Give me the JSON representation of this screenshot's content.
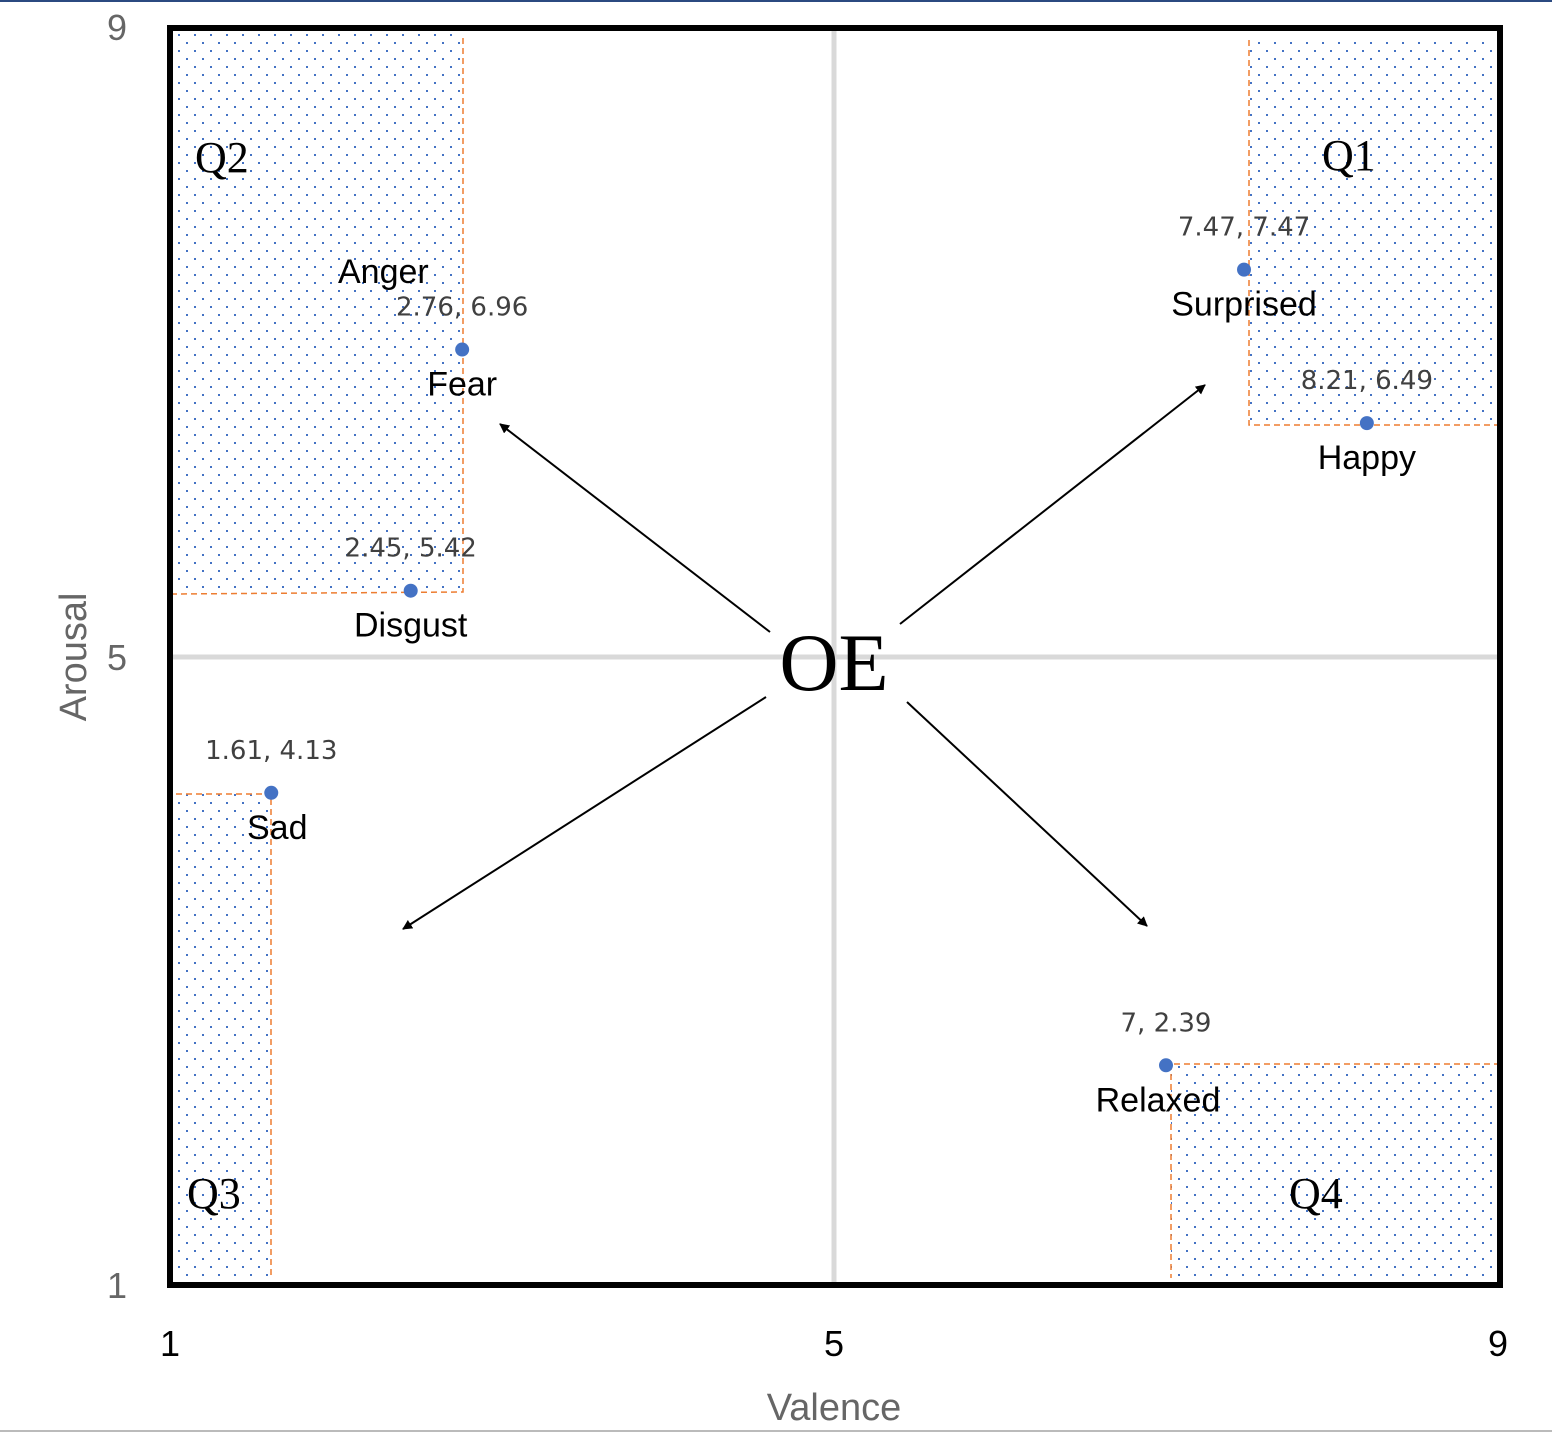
{
  "chart_data": {
    "type": "scatter",
    "title": "",
    "xlabel": "Valence",
    "ylabel": "Arousal",
    "xlim": [
      1,
      9
    ],
    "ylim": [
      1,
      9
    ],
    "xticks": [
      "1",
      "5",
      "9"
    ],
    "yticks": [
      "1",
      "5",
      "9"
    ],
    "center_label": "OE",
    "quadrants": [
      "Q1",
      "Q2",
      "Q3",
      "Q4"
    ],
    "points": [
      {
        "name": "Fear",
        "x": 2.76,
        "y": 6.96,
        "value_label": "2.76, 6.96"
      },
      {
        "name": "Disgust",
        "x": 2.45,
        "y": 5.42,
        "value_label": "2.45, 5.42"
      },
      {
        "name": "Sad",
        "x": 1.61,
        "y": 4.13,
        "value_label": "1.61, 4.13"
      },
      {
        "name": "Surprised",
        "x": 7.47,
        "y": 7.47,
        "value_label": "7.47, 7.47"
      },
      {
        "name": "Happy",
        "x": 8.21,
        "y": 6.49,
        "value_label": "8.21, 6.49"
      },
      {
        "name": "Relaxed",
        "x": 7,
        "y": 2.39,
        "value_label": "7, 2.39"
      }
    ],
    "extra_labels": {
      "anger": "Anger"
    },
    "colors": {
      "point": "#4472c4",
      "dash": "#ed7d31",
      "grid": "#d9d9d9",
      "dots": "#4472c4"
    }
  }
}
